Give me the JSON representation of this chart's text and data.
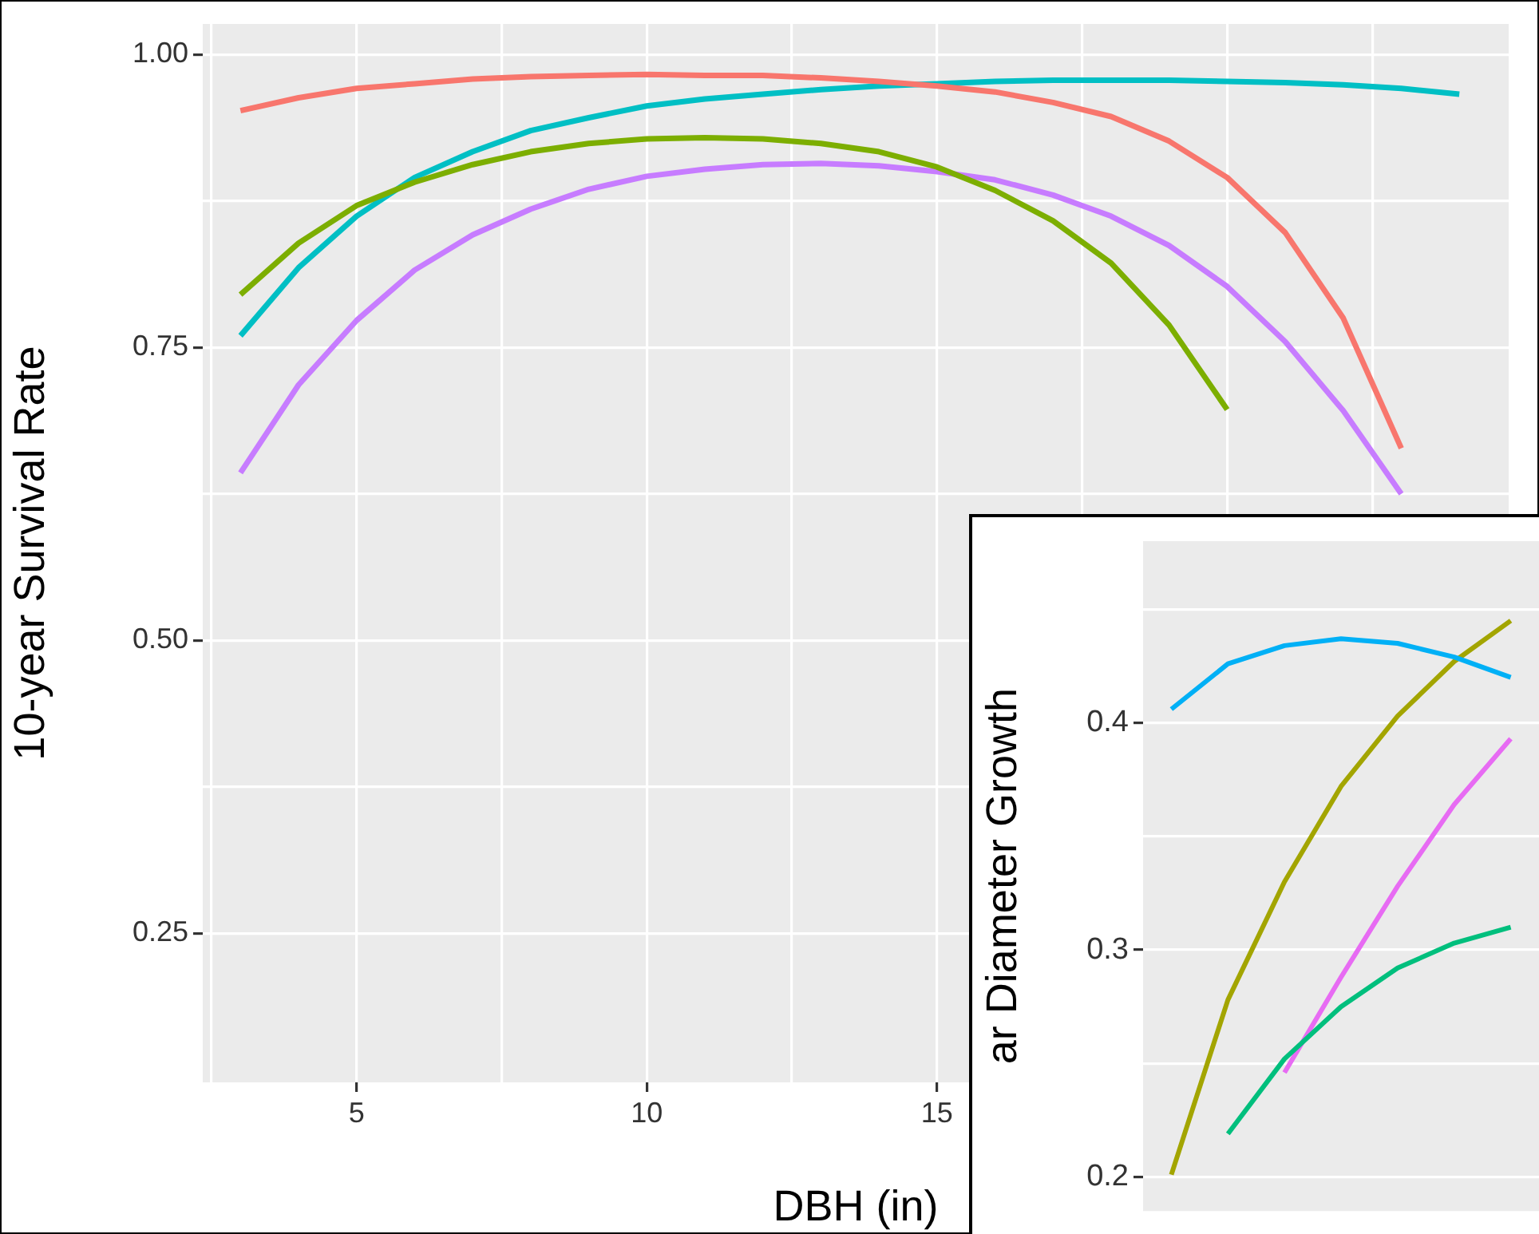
{
  "chart_data": [
    {
      "type": "line",
      "xlabel": "DBH (in)",
      "ylabel": "10-year Survival Rate",
      "x": [
        3,
        4,
        5,
        6,
        7,
        8,
        9,
        10,
        11,
        12,
        13,
        14,
        15,
        16,
        17,
        18,
        19,
        20,
        21,
        22,
        23,
        24
      ],
      "xlim": [
        2.35,
        24.85
      ],
      "ylim": [
        0.123,
        1.026
      ],
      "xticks": [
        {
          "value": 2.5,
          "label": null
        },
        5,
        {
          "value": 7.5,
          "label": null
        },
        10,
        {
          "value": 12.5,
          "label": null
        },
        15,
        {
          "value": 17.5,
          "label": null
        },
        {
          "value": 20,
          "label": null
        },
        {
          "value": 22.5,
          "label": null
        }
      ],
      "yticks": [
        0.25,
        {
          "value": 0.375,
          "label": null
        },
        "0.50",
        {
          "value": 0.625,
          "label": null
        },
        0.75,
        {
          "value": 0.875,
          "label": null
        },
        "1.00"
      ],
      "grid": true,
      "legend": false,
      "series": [
        {
          "color": "#f8766d",
          "values": [
            0.952,
            0.963,
            0.971,
            0.975,
            0.979,
            0.981,
            0.982,
            0.983,
            0.982,
            0.982,
            0.98,
            0.977,
            0.973,
            0.968,
            0.959,
            0.947,
            0.926,
            0.895,
            0.848,
            0.775,
            0.664,
            null
          ]
        },
        {
          "color": "#7cae00",
          "values": [
            0.795,
            0.839,
            0.871,
            0.891,
            0.906,
            0.917,
            0.924,
            0.928,
            0.929,
            0.928,
            0.924,
            0.917,
            0.904,
            0.884,
            0.858,
            0.822,
            0.769,
            0.697,
            null,
            null,
            null,
            null
          ]
        },
        {
          "color": "#00bfc4",
          "values": [
            0.76,
            0.818,
            0.862,
            0.895,
            0.917,
            0.935,
            0.946,
            0.956,
            0.962,
            0.966,
            0.97,
            0.973,
            0.975,
            0.977,
            0.978,
            0.978,
            0.978,
            0.977,
            0.976,
            0.974,
            0.971,
            0.966
          ]
        },
        {
          "color": "#c77cff",
          "values": [
            0.643,
            0.718,
            0.773,
            0.816,
            0.846,
            0.868,
            0.885,
            0.896,
            0.902,
            0.906,
            0.907,
            0.905,
            0.9,
            0.893,
            0.88,
            0.862,
            0.837,
            0.802,
            0.755,
            0.696,
            0.625,
            null
          ]
        }
      ]
    },
    {
      "type": "line",
      "ylabel": "ar Diameter Growth",
      "categories": [
        null,
        null,
        null,
        null,
        null,
        null,
        null
      ],
      "ylim": [
        0.185,
        0.48
      ],
      "yticks": [
        0.2,
        {
          "value": 0.25,
          "label": null
        },
        0.3,
        {
          "value": 0.35,
          "label": null
        },
        0.4,
        {
          "value": 0.45,
          "label": null
        }
      ],
      "grid": "y",
      "legend": false,
      "tick_labels": "y",
      "series": [
        {
          "color": "#00b0f6",
          "values": [
            0.406,
            0.426,
            0.434,
            0.437,
            0.435,
            0.429,
            0.42
          ]
        },
        {
          "color": "#a3a500",
          "values": [
            0.201,
            0.278,
            0.33,
            0.372,
            0.403,
            0.427,
            0.445
          ]
        },
        {
          "color": "#00bf7d",
          "values": [
            null,
            0.219,
            0.252,
            0.275,
            0.292,
            0.303,
            0.31
          ]
        },
        {
          "color": "#e76bf3",
          "values": [
            null,
            null,
            0.246,
            0.288,
            0.328,
            0.364,
            0.393
          ]
        }
      ]
    }
  ]
}
